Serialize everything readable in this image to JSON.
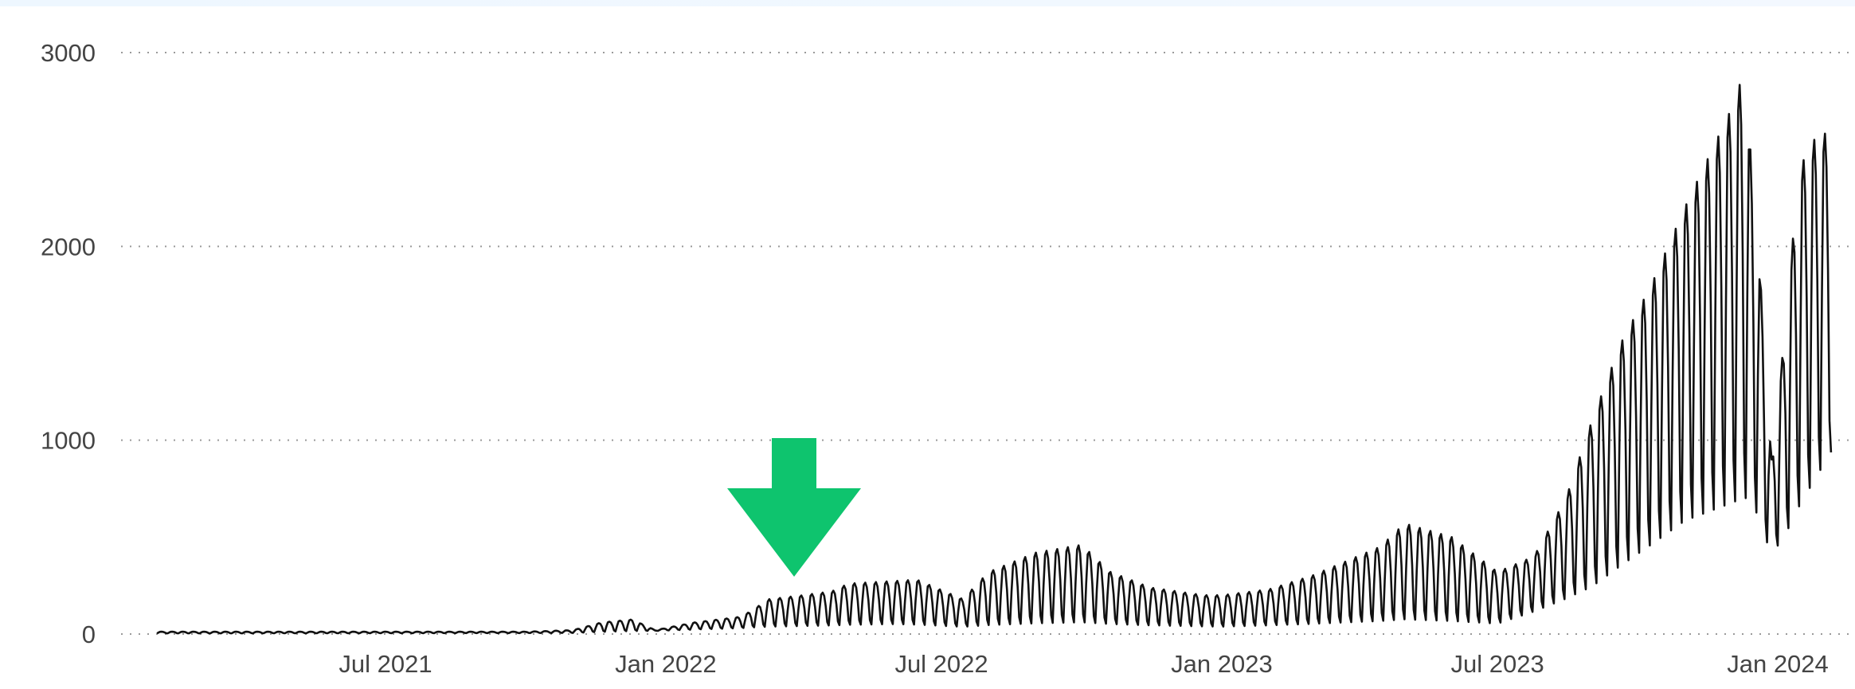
{
  "chart_data": {
    "type": "line",
    "title": "",
    "xlabel": "",
    "ylabel": "",
    "ylim": [
      0,
      3000
    ],
    "y_ticks": [
      "0",
      "1000",
      "2000",
      "3000"
    ],
    "x_ticks": [
      {
        "label": "Jul 2021",
        "date": "2021-07-01"
      },
      {
        "label": "Jan 2022",
        "date": "2022-01-01"
      },
      {
        "label": "Jul 2022",
        "date": "2022-07-01"
      },
      {
        "label": "Jan 2023",
        "date": "2023-01-01"
      },
      {
        "label": "Jul 2023",
        "date": "2023-07-01"
      },
      {
        "label": "Jan 2024",
        "date": "2024-01-01"
      }
    ],
    "grid": "horizontal dotted",
    "line_color": "#111111",
    "weekly_cycle_note": "values oscillate weekly between a low trough and the peak values listed",
    "series": [
      {
        "peaks": [
          [
            "2021-02-01",
            12
          ],
          [
            "2021-04-01",
            12
          ],
          [
            "2021-06-01",
            12
          ],
          [
            "2021-08-01",
            12
          ],
          [
            "2021-10-01",
            12
          ],
          [
            "2021-11-01",
            20
          ],
          [
            "2021-11-20",
            60
          ],
          [
            "2021-12-10",
            75
          ],
          [
            "2021-12-25",
            20
          ],
          [
            "2022-01-20",
            60
          ],
          [
            "2022-02-20",
            90
          ],
          [
            "2022-03-10",
            180
          ],
          [
            "2022-04-01",
            200
          ],
          [
            "2022-04-20",
            220
          ],
          [
            "2022-05-01",
            260
          ],
          [
            "2022-06-15",
            280
          ],
          [
            "2022-07-15",
            180
          ],
          [
            "2022-08-01",
            320
          ],
          [
            "2022-09-01",
            420
          ],
          [
            "2022-10-01",
            460
          ],
          [
            "2022-10-20",
            320
          ],
          [
            "2022-11-15",
            240
          ],
          [
            "2022-12-20",
            200
          ],
          [
            "2023-01-01",
            200
          ],
          [
            "2023-02-01",
            230
          ],
          [
            "2023-03-01",
            300
          ],
          [
            "2023-04-15",
            450
          ],
          [
            "2023-05-01",
            570
          ],
          [
            "2023-06-01",
            500
          ],
          [
            "2023-07-01",
            320
          ],
          [
            "2023-07-25",
            400
          ],
          [
            "2023-08-15",
            700
          ],
          [
            "2023-09-01",
            1100
          ],
          [
            "2023-09-20",
            1500
          ],
          [
            "2023-10-10",
            1800
          ],
          [
            "2023-11-01",
            2200
          ],
          [
            "2023-12-01",
            2700
          ],
          [
            "2023-12-10",
            2900
          ],
          [
            "2023-12-20",
            1900
          ],
          [
            "2023-12-28",
            900
          ],
          [
            "2024-01-05",
            1500
          ],
          [
            "2024-01-15",
            2400
          ],
          [
            "2024-01-25",
            2550
          ],
          [
            "2024-02-05",
            2600
          ]
        ],
        "troughs": [
          [
            "2021-02-01",
            3
          ],
          [
            "2021-11-01",
            5
          ],
          [
            "2022-03-01",
            30
          ],
          [
            "2022-06-01",
            40
          ],
          [
            "2022-07-15",
            30
          ],
          [
            "2022-10-01",
            40
          ],
          [
            "2023-01-01",
            30
          ],
          [
            "2023-05-01",
            50
          ],
          [
            "2023-07-01",
            40
          ],
          [
            "2023-09-01",
            200
          ],
          [
            "2023-11-01",
            500
          ],
          [
            "2023-12-15",
            600
          ],
          [
            "2023-12-28",
            380
          ],
          [
            "2024-01-10",
            500
          ],
          [
            "2024-02-05",
            850
          ]
        ]
      }
    ],
    "annotations": [
      {
        "type": "arrow-down",
        "color": "#0ec46e",
        "date": "2022-04-01"
      }
    ]
  }
}
